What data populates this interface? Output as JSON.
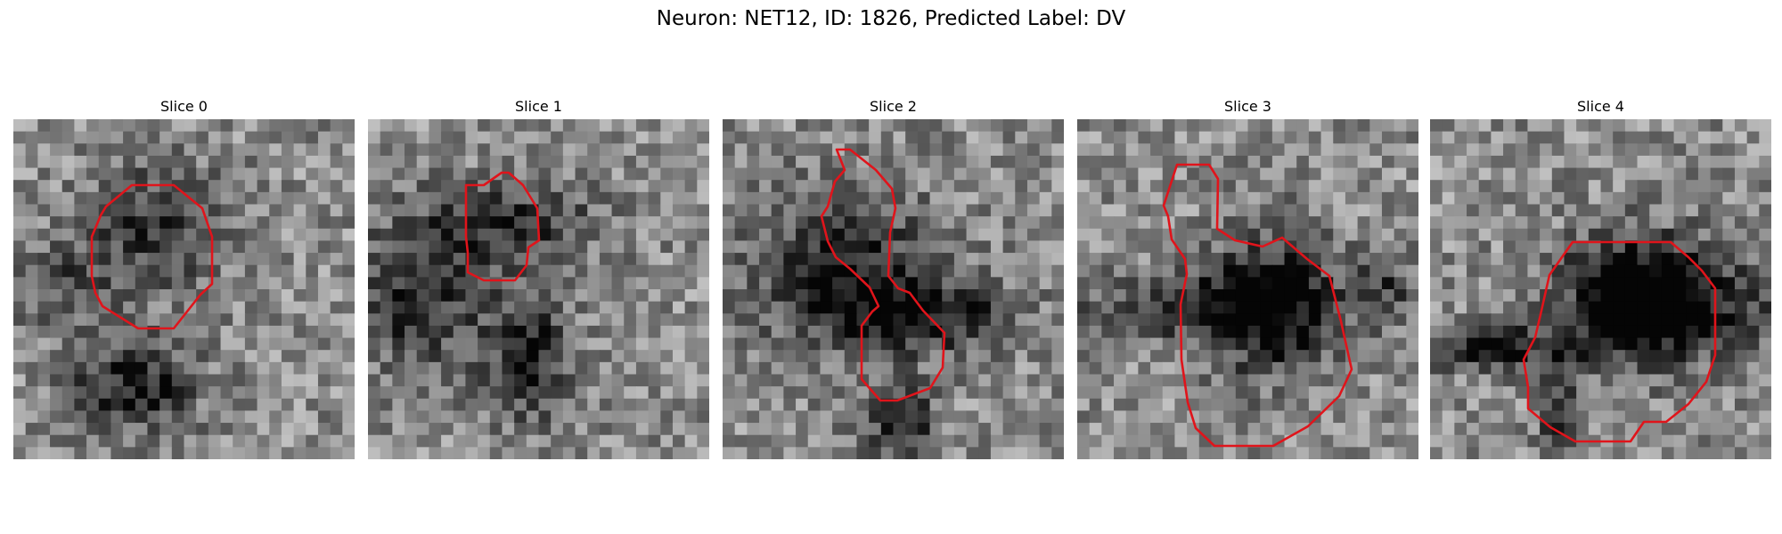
{
  "figure": {
    "title": "Neuron: NET12, ID: 1826, Predicted Label: DV",
    "contour_color": "#e0141b"
  },
  "panels": [
    {
      "title": "Slice 0",
      "dark_blobs": [
        [
          0.42,
          0.32,
          0.2,
          0.18,
          0.35
        ],
        [
          0.35,
          0.78,
          0.18,
          0.14,
          0.45
        ],
        [
          0.15,
          0.5,
          0.15,
          0.12,
          0.25
        ]
      ]
    },
    {
      "title": "Slice 1",
      "dark_blobs": [
        [
          0.42,
          0.3,
          0.25,
          0.12,
          0.35
        ],
        [
          0.15,
          0.52,
          0.2,
          0.22,
          0.4
        ],
        [
          0.48,
          0.7,
          0.12,
          0.18,
          0.45
        ]
      ]
    },
    {
      "title": "Slice 2",
      "dark_blobs": [
        [
          0.35,
          0.45,
          0.28,
          0.22,
          0.45
        ],
        [
          0.62,
          0.58,
          0.25,
          0.1,
          0.4
        ],
        [
          0.52,
          0.9,
          0.1,
          0.12,
          0.45
        ]
      ]
    },
    {
      "title": "Slice 3",
      "dark_blobs": [
        [
          0.58,
          0.55,
          0.18,
          0.2,
          0.6
        ],
        [
          0.3,
          0.55,
          0.3,
          0.1,
          0.35
        ],
        [
          0.9,
          0.5,
          0.1,
          0.1,
          0.3
        ]
      ]
    },
    {
      "title": "Slice 4",
      "dark_blobs": [
        [
          0.6,
          0.53,
          0.2,
          0.18,
          0.7
        ],
        [
          0.2,
          0.67,
          0.22,
          0.07,
          0.45
        ],
        [
          0.8,
          0.55,
          0.25,
          0.14,
          0.35
        ],
        [
          0.38,
          0.88,
          0.06,
          0.12,
          0.35
        ]
      ]
    }
  ]
}
